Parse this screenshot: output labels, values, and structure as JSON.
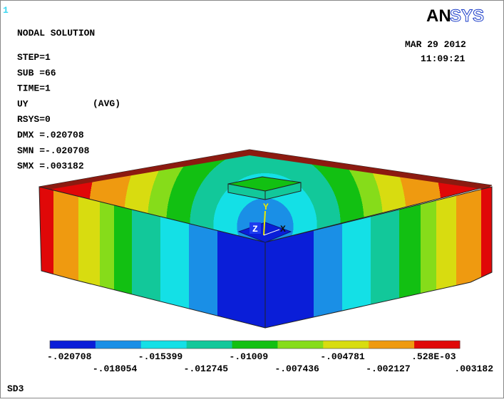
{
  "window_number": "1",
  "logo": [
    "AN",
    "SYS"
  ],
  "info": {
    "title": "NODAL SOLUTION",
    "lines": [
      "STEP=1",
      "SUB =66",
      "TIME=1",
      "UY",
      "RSYS=0",
      "DMX =.020708",
      "SMN =-.020708",
      "SMX =.003182"
    ],
    "avg": "(AVG)"
  },
  "date": "MAR 29 2012",
  "time": "11:09:21",
  "triad": {
    "x": "X",
    "y": "Y",
    "z": "Z"
  },
  "legend": {
    "colors": [
      "#0a1ed8",
      "#1a8fe6",
      "#14e0e6",
      "#12c89a",
      "#12c012",
      "#86dc1a",
      "#d8dc10",
      "#ef9a10",
      "#e00808"
    ],
    "labels": [
      "-.020708",
      "-.018054",
      "-.015399",
      "-.012745",
      "-.01009",
      "-.007436",
      "-.004781",
      "-.002127",
      ".528E-03",
      ".003182"
    ]
  },
  "footer": "SD3"
}
